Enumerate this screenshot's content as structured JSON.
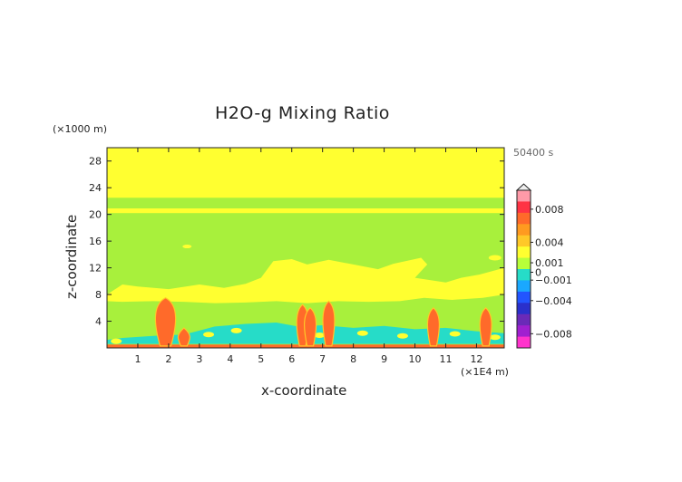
{
  "chart_data": {
    "type": "heatmap",
    "title": "H2O-g Mixing Ratio",
    "xlabel": "x-coordinate",
    "ylabel": "z-coordinate",
    "x_unit": "(×1E4 m)",
    "y_unit": "(×1000 m)",
    "time_label": "50400 s",
    "xlim": [
      0,
      12.9
    ],
    "ylim": [
      0,
      30
    ],
    "x_ticks": [
      1,
      2,
      3,
      4,
      5,
      6,
      7,
      8,
      9,
      10,
      11,
      12
    ],
    "y_ticks": [
      4,
      8,
      12,
      16,
      20,
      24,
      28
    ],
    "colorbar": {
      "levels": [
        -0.008,
        -0.004,
        -0.001,
        0,
        0.001,
        0.004,
        0.008
      ],
      "labels": [
        "0.008",
        "0.004",
        "0.001",
        "0",
        "−0.001",
        "−0.004",
        "−0.008"
      ],
      "colors_top_to_bottom": [
        "#ff9aa8",
        "#ff3344",
        "#ff6a2a",
        "#ff9a20",
        "#ffc828",
        "#ffff30",
        "#b8ff3a",
        "#26dcc8",
        "#1aa8ff",
        "#2255ff",
        "#2a30cc",
        "#6a2ab8",
        "#a020d0",
        "#ff33cc"
      ]
    },
    "regions": {
      "background_color": "#a8f03c",
      "upper_layer": {
        "z_range": [
          22.5,
          30
        ],
        "color": "#ffff30"
      },
      "thin_band": {
        "z_range": [
          20.2,
          20.9
        ],
        "color": "#ffff30"
      },
      "cloud_layer": {
        "z_range": [
          6.5,
          13.5
        ],
        "color": "#ffff30"
      },
      "low_moist_layer": {
        "z_range": [
          0.5,
          3.5
        ],
        "color": "#26dcc8"
      },
      "plumes": [
        {
          "x": 1.9,
          "z_top": 7.5,
          "color": "#ff6a2a"
        },
        {
          "x": 2.5,
          "z_top": 3.0,
          "color": "#ff6a2a"
        },
        {
          "x": 6.35,
          "z_top": 6.5,
          "color": "#ff6a2a"
        },
        {
          "x": 6.6,
          "z_top": 6.0,
          "color": "#ff6a2a"
        },
        {
          "x": 7.2,
          "z_top": 7.0,
          "color": "#ff6a2a"
        },
        {
          "x": 10.6,
          "z_top": 6.0,
          "color": "#ff6a2a"
        },
        {
          "x": 12.3,
          "z_top": 6.0,
          "color": "#ff6a2a"
        }
      ]
    }
  }
}
